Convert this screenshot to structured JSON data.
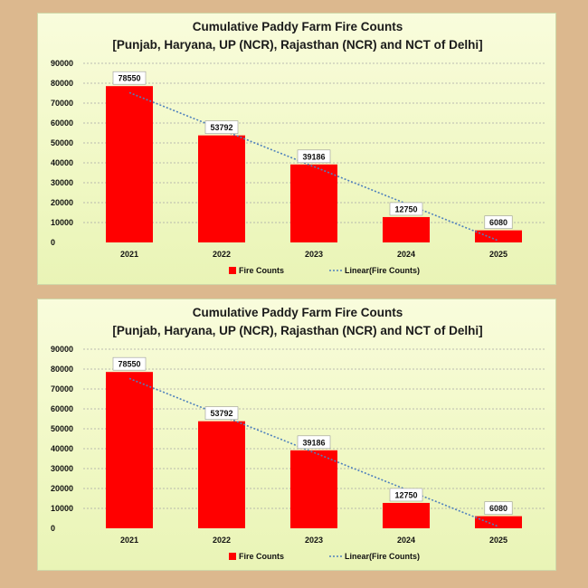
{
  "page": {
    "background_color": "#dcb88e"
  },
  "chart_data": [
    {
      "type": "bar",
      "title": "Cumulative Paddy Farm Fire Counts",
      "subtitle": "[Punjab, Haryana, UP (NCR), Rajasthan (NCR) and NCT of Delhi]",
      "categories": [
        "2021",
        "2022",
        "2023",
        "2024",
        "2025"
      ],
      "series": [
        {
          "name": "Fire Counts",
          "values": [
            78550,
            53792,
            39186,
            12750,
            6080
          ],
          "color": "#ff0000"
        }
      ],
      "trendline": {
        "name": "Linear(Fire Counts)",
        "type": "linear",
        "color": "#4f81bd"
      },
      "data_labels": [
        "78550",
        "53792",
        "39186",
        "12750",
        "6080"
      ],
      "yticks": [
        "0",
        "10000",
        "20000",
        "30000",
        "40000",
        "50000",
        "60000",
        "70000",
        "80000",
        "90000"
      ],
      "ylim": [
        0,
        90000
      ],
      "grid": true,
      "legend": {
        "position": "bottom",
        "entries": [
          "Fire Counts",
          "Linear(Fire Counts)"
        ]
      },
      "xlabel": "",
      "ylabel": ""
    },
    {
      "type": "bar",
      "title": "Cumulative Paddy Farm Fire Counts",
      "subtitle": "[Punjab, Haryana, UP (NCR), Rajasthan (NCR) and NCT of Delhi]",
      "categories": [
        "2021",
        "2022",
        "2023",
        "2024",
        "2025"
      ],
      "series": [
        {
          "name": "Fire Counts",
          "values": [
            78550,
            53792,
            39186,
            12750,
            6080
          ],
          "color": "#ff0000"
        }
      ],
      "trendline": {
        "name": "Linear(Fire Counts)",
        "type": "linear",
        "color": "#4f81bd"
      },
      "data_labels": [
        "78550",
        "53792",
        "39186",
        "12750",
        "6080"
      ],
      "yticks": [
        "0",
        "10000",
        "20000",
        "30000",
        "40000",
        "50000",
        "60000",
        "70000",
        "80000",
        "90000"
      ],
      "ylim": [
        0,
        90000
      ],
      "grid": true,
      "legend": {
        "position": "bottom",
        "entries": [
          "Fire Counts",
          "Linear(Fire Counts)"
        ]
      },
      "xlabel": "",
      "ylabel": ""
    }
  ]
}
